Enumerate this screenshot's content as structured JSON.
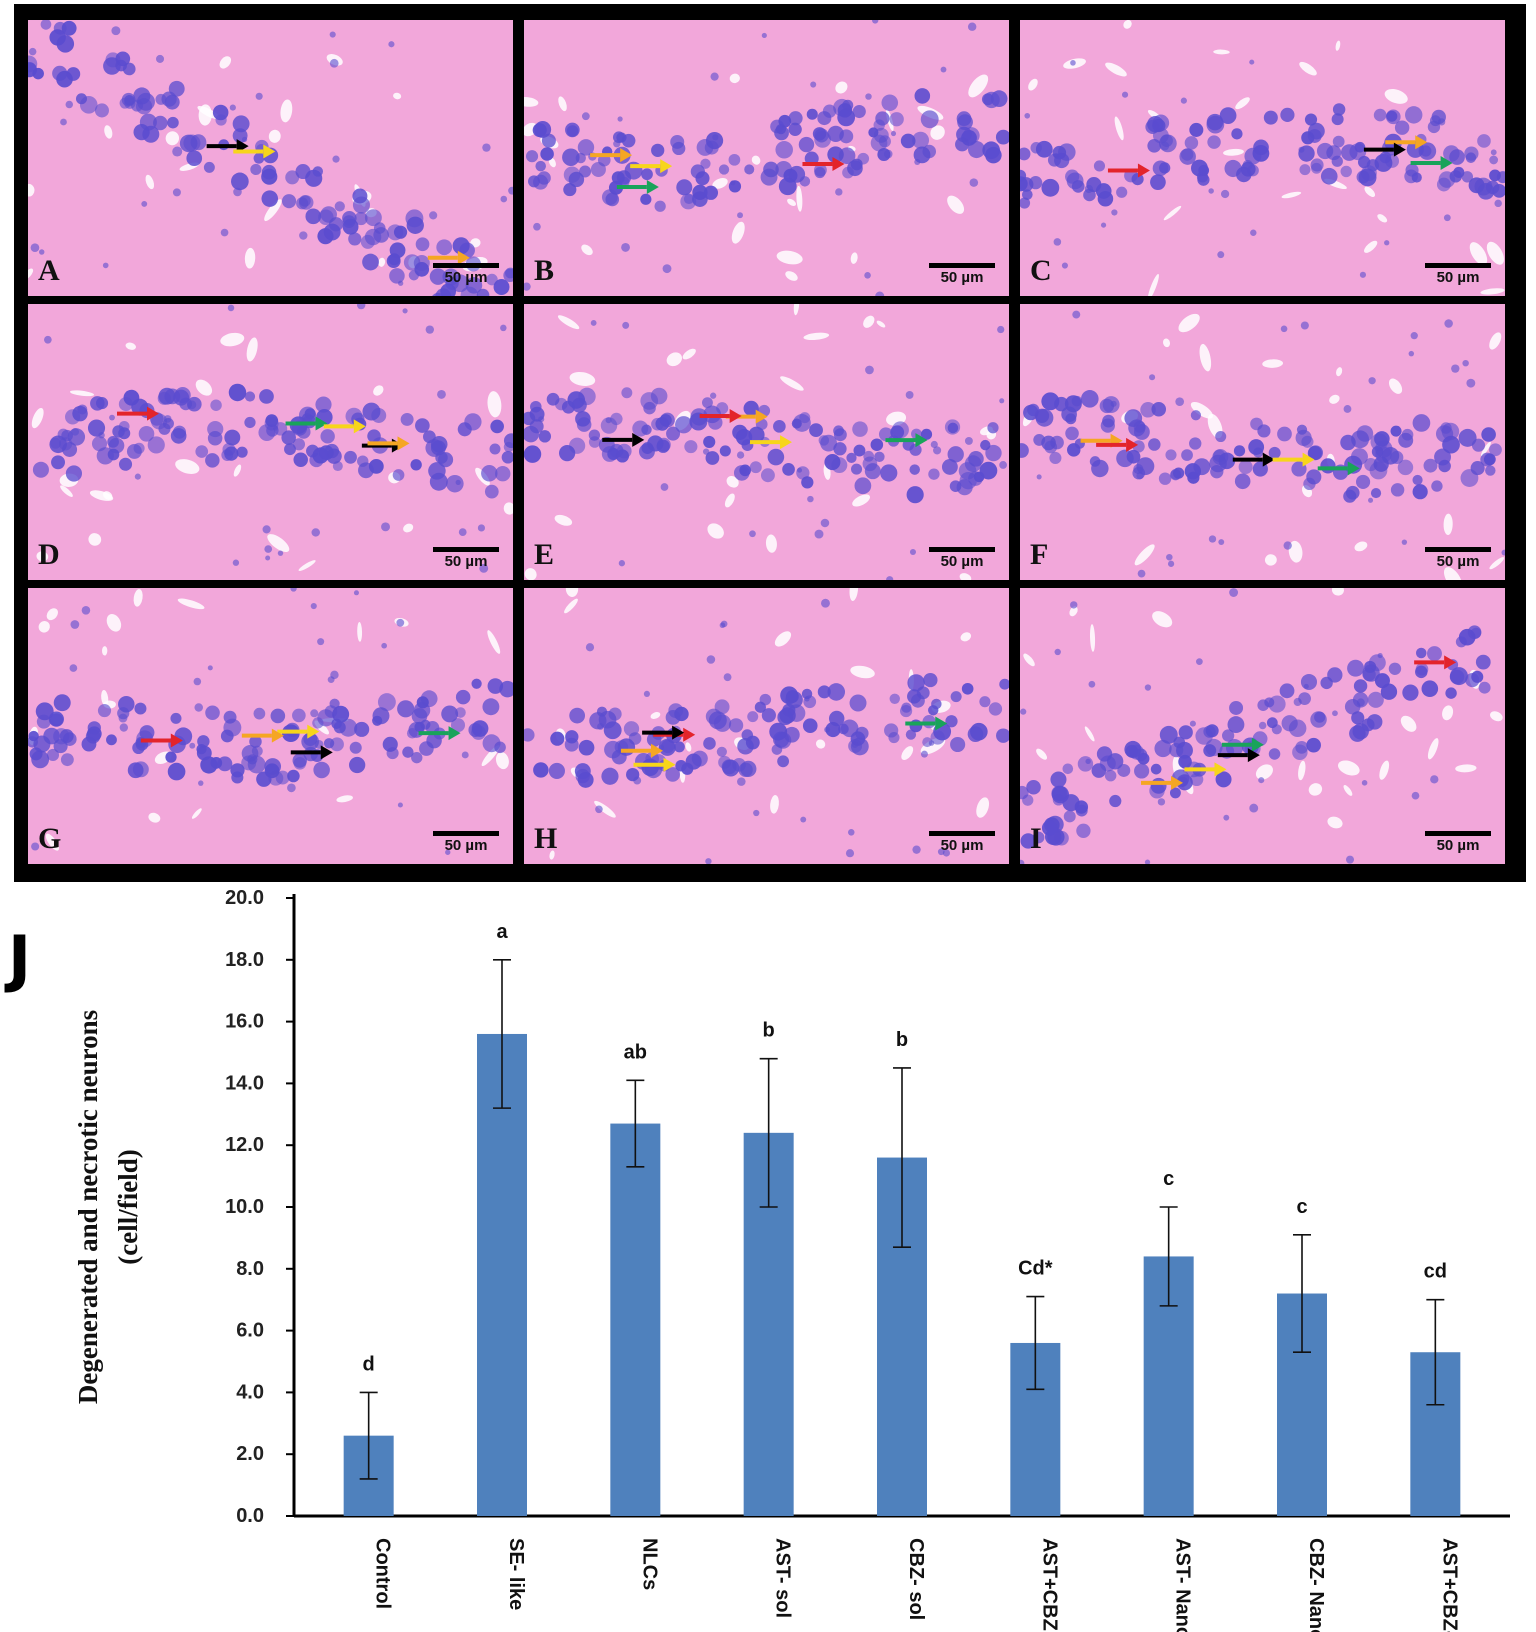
{
  "panels": [
    {
      "letter": "A",
      "scale": "50 µm"
    },
    {
      "letter": "B",
      "scale": "50 µm"
    },
    {
      "letter": "C",
      "scale": "50 µm"
    },
    {
      "letter": "D",
      "scale": "50 µm"
    },
    {
      "letter": "E",
      "scale": "50 µm"
    },
    {
      "letter": "F",
      "scale": "50 µm"
    },
    {
      "letter": "G",
      "scale": "50 µm"
    },
    {
      "letter": "H",
      "scale": "50 µm"
    },
    {
      "letter": "I",
      "scale": "50 µm"
    }
  ],
  "arrow_colors": {
    "black": "#000000",
    "yellow": "#f7d51b",
    "orange": "#f5a623",
    "red": "#e3242b",
    "green": "#19a35a"
  },
  "tissue_colors": {
    "stroma": "#f2a7da",
    "nucleus": "#5a4ccf",
    "vessel": "#ffffff"
  },
  "chart_label": "J",
  "chart_data": {
    "type": "bar",
    "ylabel_line1": "Degenerated and necrotic neurons",
    "ylabel_line2": "(cell/field)",
    "ylim": [
      0,
      20
    ],
    "yticks": [
      "0.0",
      "2.0",
      "4.0",
      "6.0",
      "8.0",
      "10.0",
      "12.0",
      "14.0",
      "16.0",
      "18.0",
      "20.0"
    ],
    "categories": [
      "Control",
      "SE- like",
      "NLCs",
      "AST- sol",
      "CBZ- sol",
      "AST+CBZ -sol",
      "AST- Nano",
      "CBZ- Nano",
      "AST+CBZ- Nano"
    ],
    "values": [
      2.6,
      15.6,
      12.7,
      12.4,
      11.6,
      5.6,
      8.4,
      7.2,
      5.3
    ],
    "errors": [
      1.4,
      2.4,
      1.4,
      2.4,
      2.9,
      1.5,
      1.6,
      1.9,
      1.7
    ],
    "letters": [
      "d",
      "a",
      "ab",
      "b",
      "b",
      "Cd*",
      "c",
      "c",
      "cd"
    ],
    "bar_color": "#4f81bd",
    "grid": false,
    "legend": "none"
  }
}
